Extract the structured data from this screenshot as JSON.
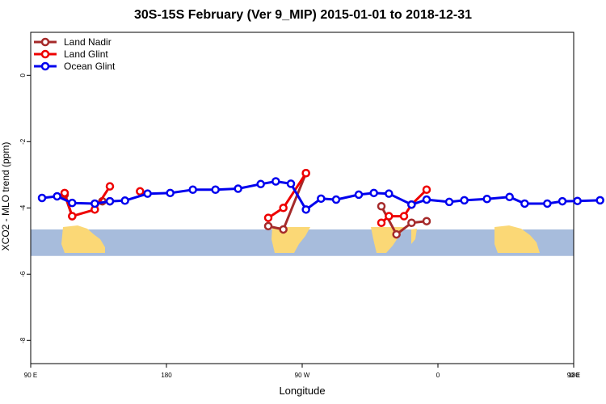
{
  "chart_data": {
    "type": "line",
    "title": "30S-15S February (Ver 9_MIP)   2015-01-01 to 2018-12-31",
    "xlabel": "Longitude",
    "ylabel": "XCO2 - MLO trend (ppm)",
    "xlim": [
      90,
      450
    ],
    "ylim": [
      -8.7,
      1.3
    ],
    "x_ticks": [
      {
        "value": 90,
        "label": "90 E"
      },
      {
        "value": 180,
        "label": "180"
      },
      {
        "value": 270,
        "label": "90 W"
      },
      {
        "value": 360,
        "label": "0"
      },
      {
        "value": 450,
        "label": "90 E"
      },
      {
        "value": 540,
        "label": "180"
      }
    ],
    "y_ticks": [
      {
        "value": 0,
        "label": "0"
      },
      {
        "value": -2,
        "label": "-2"
      },
      {
        "value": -4,
        "label": "-4"
      },
      {
        "value": -6,
        "label": "-6"
      },
      {
        "value": -8,
        "label": "-8"
      }
    ],
    "legend_position": "top-left",
    "grid": false,
    "map_strip": {
      "ymin": -5.45,
      "ymax": -4.65,
      "ocean_color": "#a7bcdc",
      "land_color": "#fbd876"
    },
    "series": [
      {
        "name": "Land Nadir",
        "color": "#a52a2a",
        "segments": [
          [
            [
              112.5,
              -3.6
            ],
            [
              117.5,
              -4.25
            ]
          ],
          [
            [
              137.5,
              -3.8
            ],
            [
              142.5,
              -3.8
            ]
          ],
          [
            [
              247.5,
              -4.55
            ],
            [
              257.5,
              -4.65
            ],
            [
              272.5,
              -2.95
            ]
          ],
          [
            [
              322.5,
              -3.95
            ],
            [
              332.5,
              -4.8
            ],
            [
              342.5,
              -4.45
            ],
            [
              352.5,
              -4.4
            ]
          ]
        ]
      },
      {
        "name": "Land Glint",
        "color": "#ee0000",
        "segments": [
          [
            [
              112.5,
              -3.55
            ],
            [
              117.5,
              -4.25
            ],
            [
              132.5,
              -4.05
            ],
            [
              142.5,
              -3.35
            ]
          ],
          [
            [
              162.5,
              -3.5
            ]
          ],
          [
            [
              247.5,
              -4.3
            ],
            [
              257.5,
              -4.0
            ],
            [
              272.5,
              -2.95
            ]
          ],
          [
            [
              322.5,
              -4.45
            ],
            [
              327.5,
              -4.25
            ],
            [
              337.5,
              -4.25
            ],
            [
              342.5,
              -3.9
            ],
            [
              352.5,
              -3.45
            ]
          ]
        ]
      },
      {
        "name": "Ocean Glint",
        "color": "#0000ee",
        "segments": [
          [
            [
              97.5,
              -3.7
            ],
            [
              107.5,
              -3.65
            ],
            [
              117.5,
              -3.85
            ],
            [
              132.5,
              -3.87
            ],
            [
              142.5,
              -3.8
            ],
            [
              152.5,
              -3.78
            ],
            [
              167.5,
              -3.57
            ],
            [
              182.5,
              -3.55
            ],
            [
              197.5,
              -3.45
            ],
            [
              212.5,
              -3.45
            ],
            [
              227.5,
              -3.42
            ],
            [
              242.5,
              -3.28
            ],
            [
              252.5,
              -3.2
            ],
            [
              262.5,
              -3.27
            ],
            [
              272.5,
              -4.05
            ],
            [
              282.5,
              -3.72
            ],
            [
              292.5,
              -3.75
            ],
            [
              307.5,
              -3.6
            ],
            [
              317.5,
              -3.55
            ],
            [
              327.5,
              -3.57
            ],
            [
              342.5,
              -3.9
            ],
            [
              352.5,
              -3.75
            ],
            [
              367.5,
              -3.82
            ],
            [
              377.5,
              -3.77
            ],
            [
              392.5,
              -3.73
            ],
            [
              407.5,
              -3.67
            ],
            [
              417.5,
              -3.87
            ],
            [
              432.5,
              -3.87
            ],
            [
              442.5,
              -3.8
            ],
            [
              452.5,
              -3.79
            ],
            [
              467.5,
              -3.77
            ]
          ]
        ]
      }
    ]
  }
}
